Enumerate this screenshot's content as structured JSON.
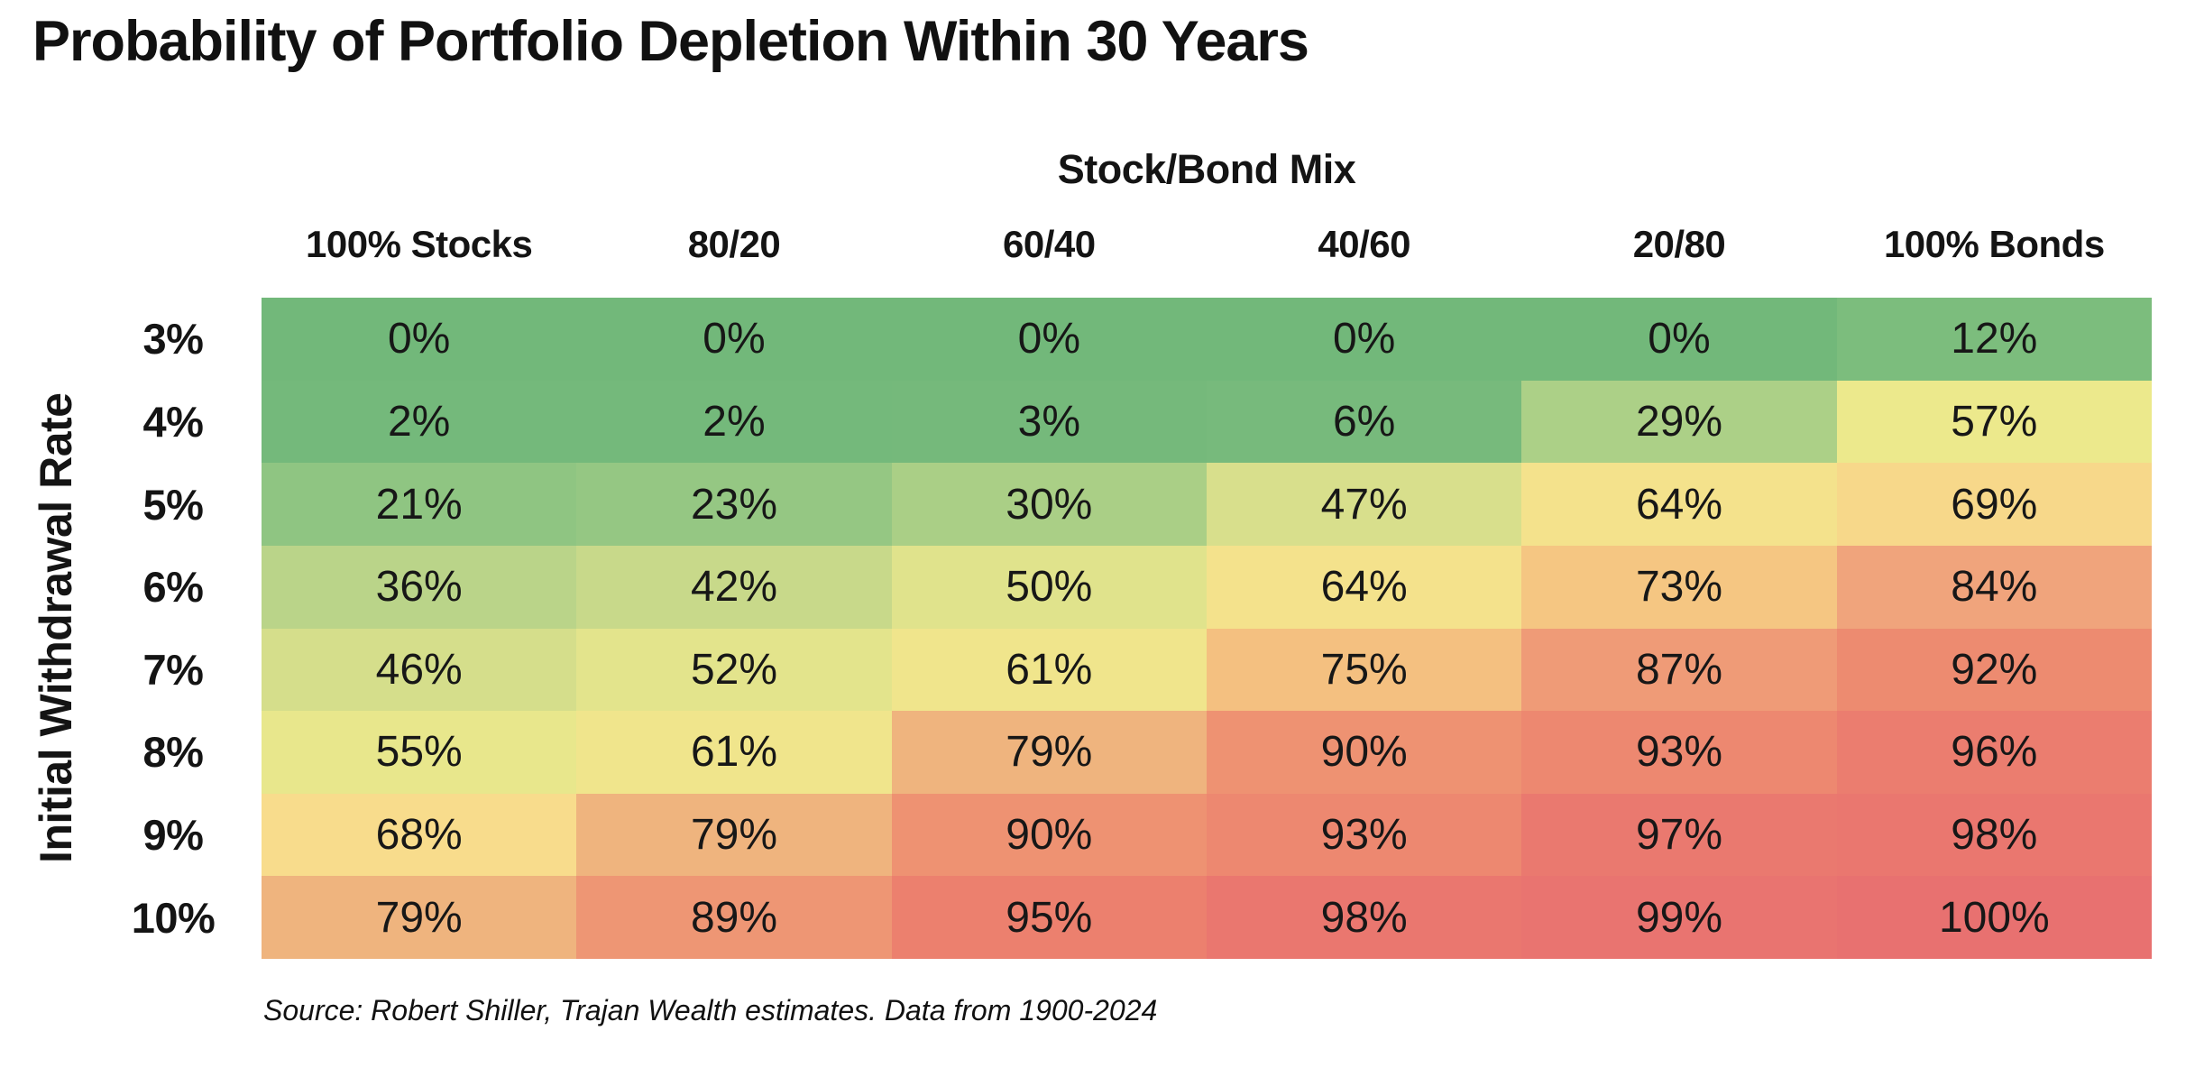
{
  "page": {
    "title": "Probability of Portfolio Depletion Within 30 Years",
    "source_note": "Source: Robert Shiller, Trajan Wealth estimates. Data from 1900-2024"
  },
  "chart_data": {
    "type": "heatmap",
    "title": "Probability of Portfolio Depletion Within 30 Years",
    "column_group_label": "Stock/Bond Mix",
    "row_group_label": "Initial Withdrawal Rate",
    "columns": [
      "100% Stocks",
      "80/20",
      "60/40",
      "40/60",
      "20/80",
      "100% Bonds"
    ],
    "rows": [
      "3%",
      "4%",
      "5%",
      "6%",
      "7%",
      "8%",
      "9%",
      "10%"
    ],
    "values": [
      [
        0,
        0,
        0,
        0,
        0,
        12
      ],
      [
        2,
        2,
        3,
        6,
        29,
        57
      ],
      [
        21,
        23,
        30,
        47,
        64,
        69
      ],
      [
        36,
        42,
        50,
        64,
        73,
        84
      ],
      [
        46,
        52,
        61,
        75,
        87,
        92
      ],
      [
        55,
        61,
        79,
        90,
        93,
        96
      ],
      [
        68,
        79,
        90,
        93,
        97,
        98
      ],
      [
        79,
        89,
        95,
        98,
        99,
        100
      ]
    ],
    "cell_labels": [
      [
        "0%",
        "0%",
        "0%",
        "0%",
        "0%",
        "12%"
      ],
      [
        "2%",
        "2%",
        "3%",
        "6%",
        "29%",
        "57%"
      ],
      [
        "21%",
        "23%",
        "30%",
        "47%",
        "64%",
        "69%"
      ],
      [
        "36%",
        "42%",
        "50%",
        "64%",
        "73%",
        "84%"
      ],
      [
        "46%",
        "52%",
        "61%",
        "75%",
        "87%",
        "92%"
      ],
      [
        "55%",
        "61%",
        "79%",
        "90%",
        "93%",
        "96%"
      ],
      [
        "68%",
        "79%",
        "90%",
        "93%",
        "97%",
        "98%"
      ],
      [
        "79%",
        "89%",
        "95%",
        "98%",
        "99%",
        "100%"
      ]
    ],
    "cell_colors": [
      [
        "#72B87A",
        "#72B87A",
        "#72B87A",
        "#72B87A",
        "#72B87A",
        "#7CBD7D"
      ],
      [
        "#74B97B",
        "#74B97B",
        "#75B97B",
        "#77BA7C",
        "#ACD087",
        "#ECE98C"
      ],
      [
        "#8FC582",
        "#95C783",
        "#AACF86",
        "#D8DF8C",
        "#F4E28C",
        "#F7D88A"
      ],
      [
        "#BAD489",
        "#C8D98A",
        "#E0E38C",
        "#F4E28C",
        "#F5C682",
        "#F0A47C"
      ],
      [
        "#D5DE8B",
        "#E3E48C",
        "#F0E58C",
        "#F4C080",
        "#EF9B77",
        "#ED8B70"
      ],
      [
        "#E8E78C",
        "#F0E58C",
        "#EFB47E",
        "#EE9272",
        "#ED8870",
        "#EB7D6F"
      ],
      [
        "#F8DC8C",
        "#EFB47E",
        "#EE9272",
        "#ED8870",
        "#EA796F",
        "#EA776F"
      ],
      [
        "#EFB47E",
        "#EE9674",
        "#EC806E",
        "#EA776F",
        "#E97470",
        "#E87170"
      ]
    ],
    "colormap": {
      "low_value": 0,
      "high_value": 100,
      "low_color": "#72B87A",
      "mid_color": "#ECE98C",
      "high_color": "#E87170"
    },
    "legend_position": "none",
    "grid": false,
    "text_color": "#141414",
    "background": "#FFFFFF"
  }
}
